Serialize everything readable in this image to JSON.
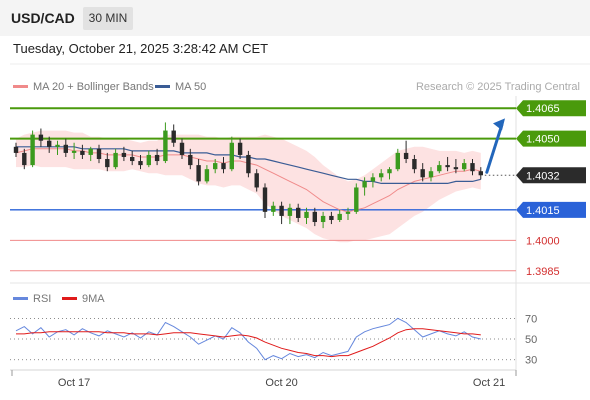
{
  "header": {
    "symbol": "USD/CAD",
    "timeframe": "30 MIN"
  },
  "datetime": "Tuesday, October 21, 2025 3:28:42 AM CET",
  "attribution": "Research © 2025 Trading Central",
  "legend": {
    "ma20": "MA 20 + Bollinger Bands",
    "ma50": "MA 50",
    "rsi": "RSI",
    "ma9": "9MA"
  },
  "colors": {
    "resistance": "#4a9a0c",
    "pivot": "#2a62d8",
    "support": "#f08a8a",
    "support_text": "#d32f2f",
    "arrow": "#2266bb",
    "bullish": "#3b9a1e",
    "bearish": "#2a2a2a",
    "ma20": "#f08a8a",
    "ma50": "#3a5c95",
    "bands": "#fde2e2",
    "rsi": "#6688dd",
    "ma9": "#e01b1b"
  },
  "chart_data": {
    "type": "line",
    "price_levels": [
      {
        "label": "1.4065",
        "value": 1.4065,
        "kind": "resistance"
      },
      {
        "label": "1.4050",
        "value": 1.405,
        "kind": "resistance"
      },
      {
        "label": "1.4032",
        "value": 1.4032,
        "kind": "last"
      },
      {
        "label": "1.4015",
        "value": 1.4015,
        "kind": "pivot"
      },
      {
        "label": "1.4000",
        "value": 1.4,
        "kind": "support"
      },
      {
        "label": "1.3985",
        "value": 1.3985,
        "kind": "support"
      }
    ],
    "price_ylim": [
      1.3979,
      1.4071
    ],
    "x_ticks": [
      {
        "label": "Oct 17",
        "index": 7
      },
      {
        "label": "Oct 20",
        "index": 32
      },
      {
        "label": "Oct 21",
        "index": 57
      }
    ],
    "candles": [
      [
        1.4046,
        1.4048,
        1.4041,
        1.4043
      ],
      [
        1.4043,
        1.4045,
        1.4035,
        1.4037
      ],
      [
        1.4037,
        1.4054,
        1.4036,
        1.4052
      ],
      [
        1.4052,
        1.4055,
        1.4046,
        1.4049
      ],
      [
        1.4049,
        1.4051,
        1.4043,
        1.4046
      ],
      [
        1.4046,
        1.4049,
        1.4042,
        1.4047
      ],
      [
        1.4047,
        1.405,
        1.4041,
        1.4043
      ],
      [
        1.4043,
        1.4048,
        1.404,
        1.4044
      ],
      [
        1.4044,
        1.4047,
        1.404,
        1.4042
      ],
      [
        1.4042,
        1.4046,
        1.4039,
        1.4045
      ],
      [
        1.4045,
        1.4047,
        1.4038,
        1.404
      ],
      [
        1.404,
        1.4043,
        1.4034,
        1.4036
      ],
      [
        1.4036,
        1.4045,
        1.4035,
        1.4043
      ],
      [
        1.4043,
        1.4046,
        1.4039,
        1.4041
      ],
      [
        1.4041,
        1.4044,
        1.4037,
        1.4039
      ],
      [
        1.4039,
        1.4042,
        1.4035,
        1.4037
      ],
      [
        1.4037,
        1.4044,
        1.4036,
        1.4042
      ],
      [
        1.4042,
        1.4045,
        1.4037,
        1.4039
      ],
      [
        1.4039,
        1.4058,
        1.4038,
        1.4054
      ],
      [
        1.4054,
        1.4057,
        1.4046,
        1.4048
      ],
      [
        1.4048,
        1.405,
        1.404,
        1.4042
      ],
      [
        1.4042,
        1.4045,
        1.4035,
        1.4037
      ],
      [
        1.4037,
        1.404,
        1.4027,
        1.4029
      ],
      [
        1.4029,
        1.4037,
        1.4028,
        1.4035
      ],
      [
        1.4035,
        1.404,
        1.4033,
        1.4038
      ],
      [
        1.4038,
        1.4041,
        1.4033,
        1.4035
      ],
      [
        1.4035,
        1.4051,
        1.4034,
        1.4048
      ],
      [
        1.4048,
        1.405,
        1.404,
        1.4042
      ],
      [
        1.4042,
        1.4044,
        1.4031,
        1.4033
      ],
      [
        1.4033,
        1.4035,
        1.4024,
        1.4026
      ],
      [
        1.4026,
        1.4028,
        1.4011,
        1.4014
      ],
      [
        1.4014,
        1.4019,
        1.4012,
        1.4017
      ],
      [
        1.4017,
        1.4019,
        1.4008,
        1.4012
      ],
      [
        1.4012,
        1.4018,
        1.4008,
        1.4016
      ],
      [
        1.4016,
        1.4018,
        1.4009,
        1.4011
      ],
      [
        1.4011,
        1.4016,
        1.4008,
        1.4014
      ],
      [
        1.4014,
        1.4016,
        1.4007,
        1.4009
      ],
      [
        1.4009,
        1.4014,
        1.4006,
        1.4012
      ],
      [
        1.4012,
        1.4014,
        1.4008,
        1.401
      ],
      [
        1.401,
        1.4015,
        1.4009,
        1.4013
      ],
      [
        1.4013,
        1.4016,
        1.401,
        1.4014
      ],
      [
        1.4014,
        1.4028,
        1.4013,
        1.4026
      ],
      [
        1.4026,
        1.4031,
        1.4022,
        1.4029
      ],
      [
        1.4029,
        1.4033,
        1.4026,
        1.4031
      ],
      [
        1.4031,
        1.4035,
        1.4029,
        1.4033
      ],
      [
        1.4033,
        1.4036,
        1.403,
        1.4035
      ],
      [
        1.4035,
        1.4045,
        1.4034,
        1.4043
      ],
      [
        1.4043,
        1.4049,
        1.4038,
        1.404
      ],
      [
        1.404,
        1.4042,
        1.4033,
        1.4035
      ],
      [
        1.4035,
        1.4038,
        1.4029,
        1.4031
      ],
      [
        1.4031,
        1.4036,
        1.4029,
        1.4034
      ],
      [
        1.4034,
        1.4039,
        1.4033,
        1.4037
      ],
      [
        1.4037,
        1.4041,
        1.4034,
        1.4036
      ],
      [
        1.4036,
        1.404,
        1.4033,
        1.4035
      ],
      [
        1.4035,
        1.404,
        1.4034,
        1.4038
      ],
      [
        1.4038,
        1.404,
        1.4032,
        1.4034
      ],
      [
        1.4034,
        1.4036,
        1.403,
        1.4032
      ]
    ],
    "ma20": [
      1.4043,
      1.4044,
      1.4045,
      1.4045,
      1.4045,
      1.4045,
      1.4045,
      1.4044,
      1.4044,
      1.4043,
      1.4043,
      1.4042,
      1.4042,
      1.4042,
      1.4042,
      1.4041,
      1.4041,
      1.4041,
      1.4042,
      1.4042,
      1.4042,
      1.4041,
      1.404,
      1.4039,
      1.4039,
      1.4038,
      1.4039,
      1.4039,
      1.4038,
      1.4037,
      1.4035,
      1.4033,
      1.4031,
      1.4029,
      1.4027,
      1.4025,
      1.4022,
      1.4019,
      1.4017,
      1.4015,
      1.4014,
      1.4015,
      1.4016,
      1.4018,
      1.402,
      1.4022,
      1.4025,
      1.4027,
      1.4029,
      1.403,
      1.4031,
      1.4032,
      1.4033,
      1.4034,
      1.4034,
      1.4035,
      1.4034
    ],
    "ma50": [
      1.4046,
      1.4046,
      1.4046,
      1.4046,
      1.4046,
      1.4046,
      1.4046,
      1.4046,
      1.4045,
      1.4045,
      1.4045,
      1.4045,
      1.4045,
      1.4045,
      1.4044,
      1.4044,
      1.4044,
      1.4044,
      1.4044,
      1.4044,
      1.4043,
      1.4043,
      1.4043,
      1.4043,
      1.4042,
      1.4042,
      1.4042,
      1.4041,
      1.4041,
      1.404,
      1.404,
      1.4039,
      1.4038,
      1.4037,
      1.4036,
      1.4035,
      1.4034,
      1.4033,
      1.4032,
      1.4031,
      1.403,
      1.403,
      1.4029,
      1.4029,
      1.4028,
      1.4028,
      1.4028,
      1.4028,
      1.4028,
      1.4028,
      1.4028,
      1.4028,
      1.4028,
      1.4029,
      1.4029,
      1.4029,
      1.403
    ],
    "band_width": [
      0.0007,
      0.0008,
      0.0008,
      0.0009,
      0.0009,
      0.0009,
      0.0009,
      0.0009,
      0.0009,
      0.0008,
      0.0008,
      0.0008,
      0.0008,
      0.0008,
      0.0007,
      0.0007,
      0.0008,
      0.0008,
      0.001,
      0.001,
      0.001,
      0.0011,
      0.0012,
      0.0012,
      0.0012,
      0.0012,
      0.0012,
      0.0012,
      0.0013,
      0.0014,
      0.0017,
      0.0018,
      0.0019,
      0.0019,
      0.0019,
      0.0019,
      0.0019,
      0.0018,
      0.0017,
      0.0016,
      0.0015,
      0.0015,
      0.0016,
      0.0017,
      0.0018,
      0.0019,
      0.0019,
      0.0018,
      0.0017,
      0.0016,
      0.0014,
      0.0012,
      0.0011,
      0.001,
      0.0009,
      0.0009,
      0.0009
    ],
    "rsi": [
      58,
      62,
      55,
      61,
      52,
      57,
      59,
      54,
      60,
      56,
      53,
      58,
      55,
      52,
      56,
      51,
      57,
      54,
      66,
      62,
      57,
      52,
      45,
      49,
      53,
      50,
      61,
      56,
      47,
      41,
      30,
      34,
      31,
      36,
      33,
      35,
      32,
      37,
      34,
      36,
      38,
      52,
      57,
      60,
      62,
      64,
      70,
      66,
      59,
      52,
      55,
      58,
      55,
      53,
      57,
      52,
      50
    ],
    "rsi_ma9": [
      55,
      55,
      56,
      56,
      57,
      57,
      57,
      57,
      57,
      57,
      57,
      56,
      56,
      56,
      55,
      55,
      55,
      54,
      55,
      56,
      56,
      56,
      55,
      54,
      53,
      52,
      53,
      54,
      53,
      51,
      47,
      44,
      41,
      39,
      37,
      36,
      34,
      34,
      33,
      34,
      34,
      37,
      40,
      43,
      47,
      51,
      56,
      59,
      60,
      60,
      59,
      58,
      57,
      56,
      55,
      55,
      54
    ],
    "rsi_ticks": [
      70,
      50,
      30
    ],
    "rsi_ylim": [
      22,
      80
    ],
    "projection": {
      "from_index": 56,
      "from_value": 1.4032,
      "to_value": 1.4061
    }
  }
}
